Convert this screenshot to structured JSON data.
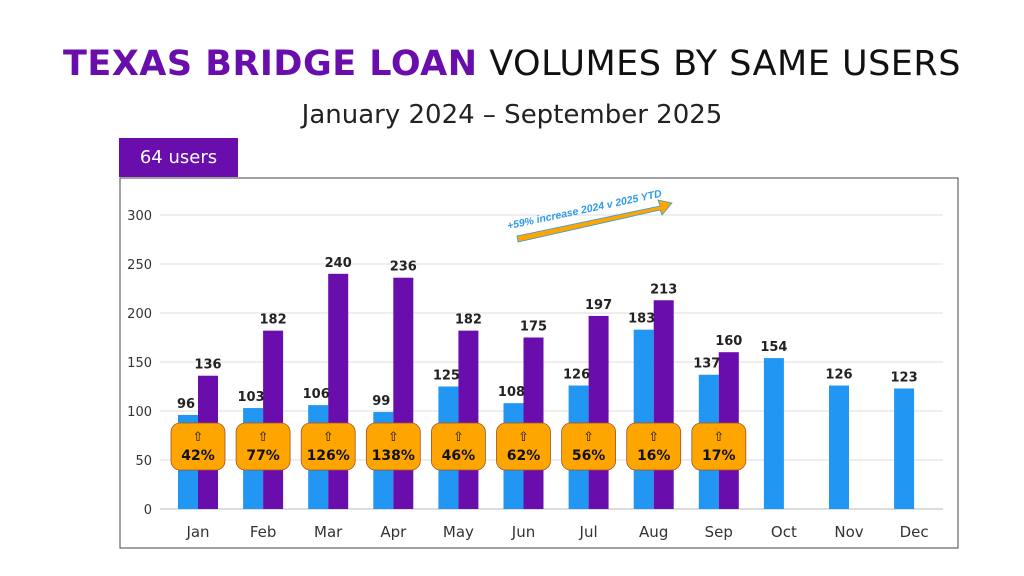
{
  "title": {
    "highlight": "TEXAS BRIDGE LOAN",
    "rest": "VOLUMES BY SAME USERS"
  },
  "subtitle": "January 2024 – September 2025",
  "users_tab": "64 users",
  "annotation": {
    "text": "+59% increase 2024 v 2025 YTD",
    "arrow_color": "#FFA500",
    "text_color": "#2E9BE8"
  },
  "colors": {
    "series_2024": "#2196F3",
    "series_2025": "#6A0DAD",
    "badge": "#FFA500",
    "accent": "#6A0DAD"
  },
  "chart_data": {
    "type": "bar",
    "categories": [
      "Jan",
      "Feb",
      "Mar",
      "Apr",
      "May",
      "Jun",
      "Jul",
      "Aug",
      "Sep",
      "Oct",
      "Nov",
      "Dec"
    ],
    "series": [
      {
        "values": [
          96,
          103,
          106,
          99,
          125,
          108,
          126,
          183,
          137,
          154,
          126,
          123
        ]
      },
      {
        "values": [
          136,
          182,
          240,
          236,
          182,
          175,
          197,
          213,
          160,
          null,
          null,
          null
        ]
      }
    ],
    "growth_badges": [
      "⇧ 42%",
      "⇧ 77%",
      "⇧ 126%",
      "⇧ 138%",
      "⇧ 46%",
      "⇧ 62%",
      "⇧ 56%",
      "⇧ 16%",
      "⇧ 17%"
    ],
    "yticks": [
      0,
      50,
      100,
      150,
      200,
      250,
      300
    ],
    "ylim": [
      0,
      300
    ],
    "grid": true,
    "xlabel": "",
    "ylabel": ""
  }
}
